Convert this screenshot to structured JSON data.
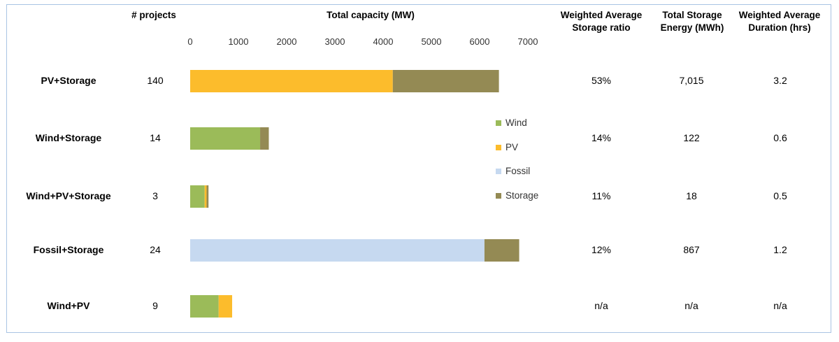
{
  "headers": {
    "projects": "# projects",
    "capacity": "Total capacity (MW)",
    "storage_ratio_line1": "Weighted Average",
    "storage_ratio_line2": "Storage ratio",
    "storage_energy_line1": "Total Storage",
    "storage_energy_line2": "Energy (MWh)",
    "duration_line1": "Weighted Average",
    "duration_line2": "Duration (hrs)"
  },
  "rows": [
    {
      "label": "PV+Storage",
      "projects": "140",
      "ratio": "53%",
      "energy": "7,015",
      "duration": "3.2"
    },
    {
      "label": "Wind+Storage",
      "projects": "14",
      "ratio": "14%",
      "energy": "122",
      "duration": "0.6"
    },
    {
      "label": "Wind+PV+Storage",
      "projects": "3",
      "ratio": "11%",
      "energy": "18",
      "duration": "0.5"
    },
    {
      "label": "Fossil+Storage",
      "projects": "24",
      "ratio": "12%",
      "energy": "867",
      "duration": "1.2"
    },
    {
      "label": "Wind+PV",
      "projects": "9",
      "ratio": "n/a",
      "energy": "n/a",
      "duration": "n/a"
    }
  ],
  "chart_data": {
    "type": "bar",
    "orientation": "horizontal",
    "stacked": true,
    "title": "Total capacity (MW)",
    "categories": [
      "PV+Storage",
      "Wind+Storage",
      "Wind+PV+Storage",
      "Fossil+Storage",
      "Wind+PV"
    ],
    "series": [
      {
        "name": "Wind",
        "color": "#9bbb59",
        "values": [
          0,
          1450,
          300,
          0,
          590
        ]
      },
      {
        "name": "PV",
        "color": "#fcbc2c",
        "values": [
          4200,
          0,
          40,
          0,
          280
        ]
      },
      {
        "name": "Fossil",
        "color": "#c6d9f0",
        "values": [
          0,
          0,
          0,
          6100,
          0
        ]
      },
      {
        "name": "Storage",
        "color": "#948a54",
        "values": [
          2200,
          180,
          40,
          720,
          0
        ]
      }
    ],
    "xlim": [
      0,
      7000
    ],
    "ticks": [
      "0",
      "1000",
      "2000",
      "3000",
      "4000",
      "5000",
      "6000",
      "7000"
    ],
    "legend_position": "right",
    "grid": false
  }
}
